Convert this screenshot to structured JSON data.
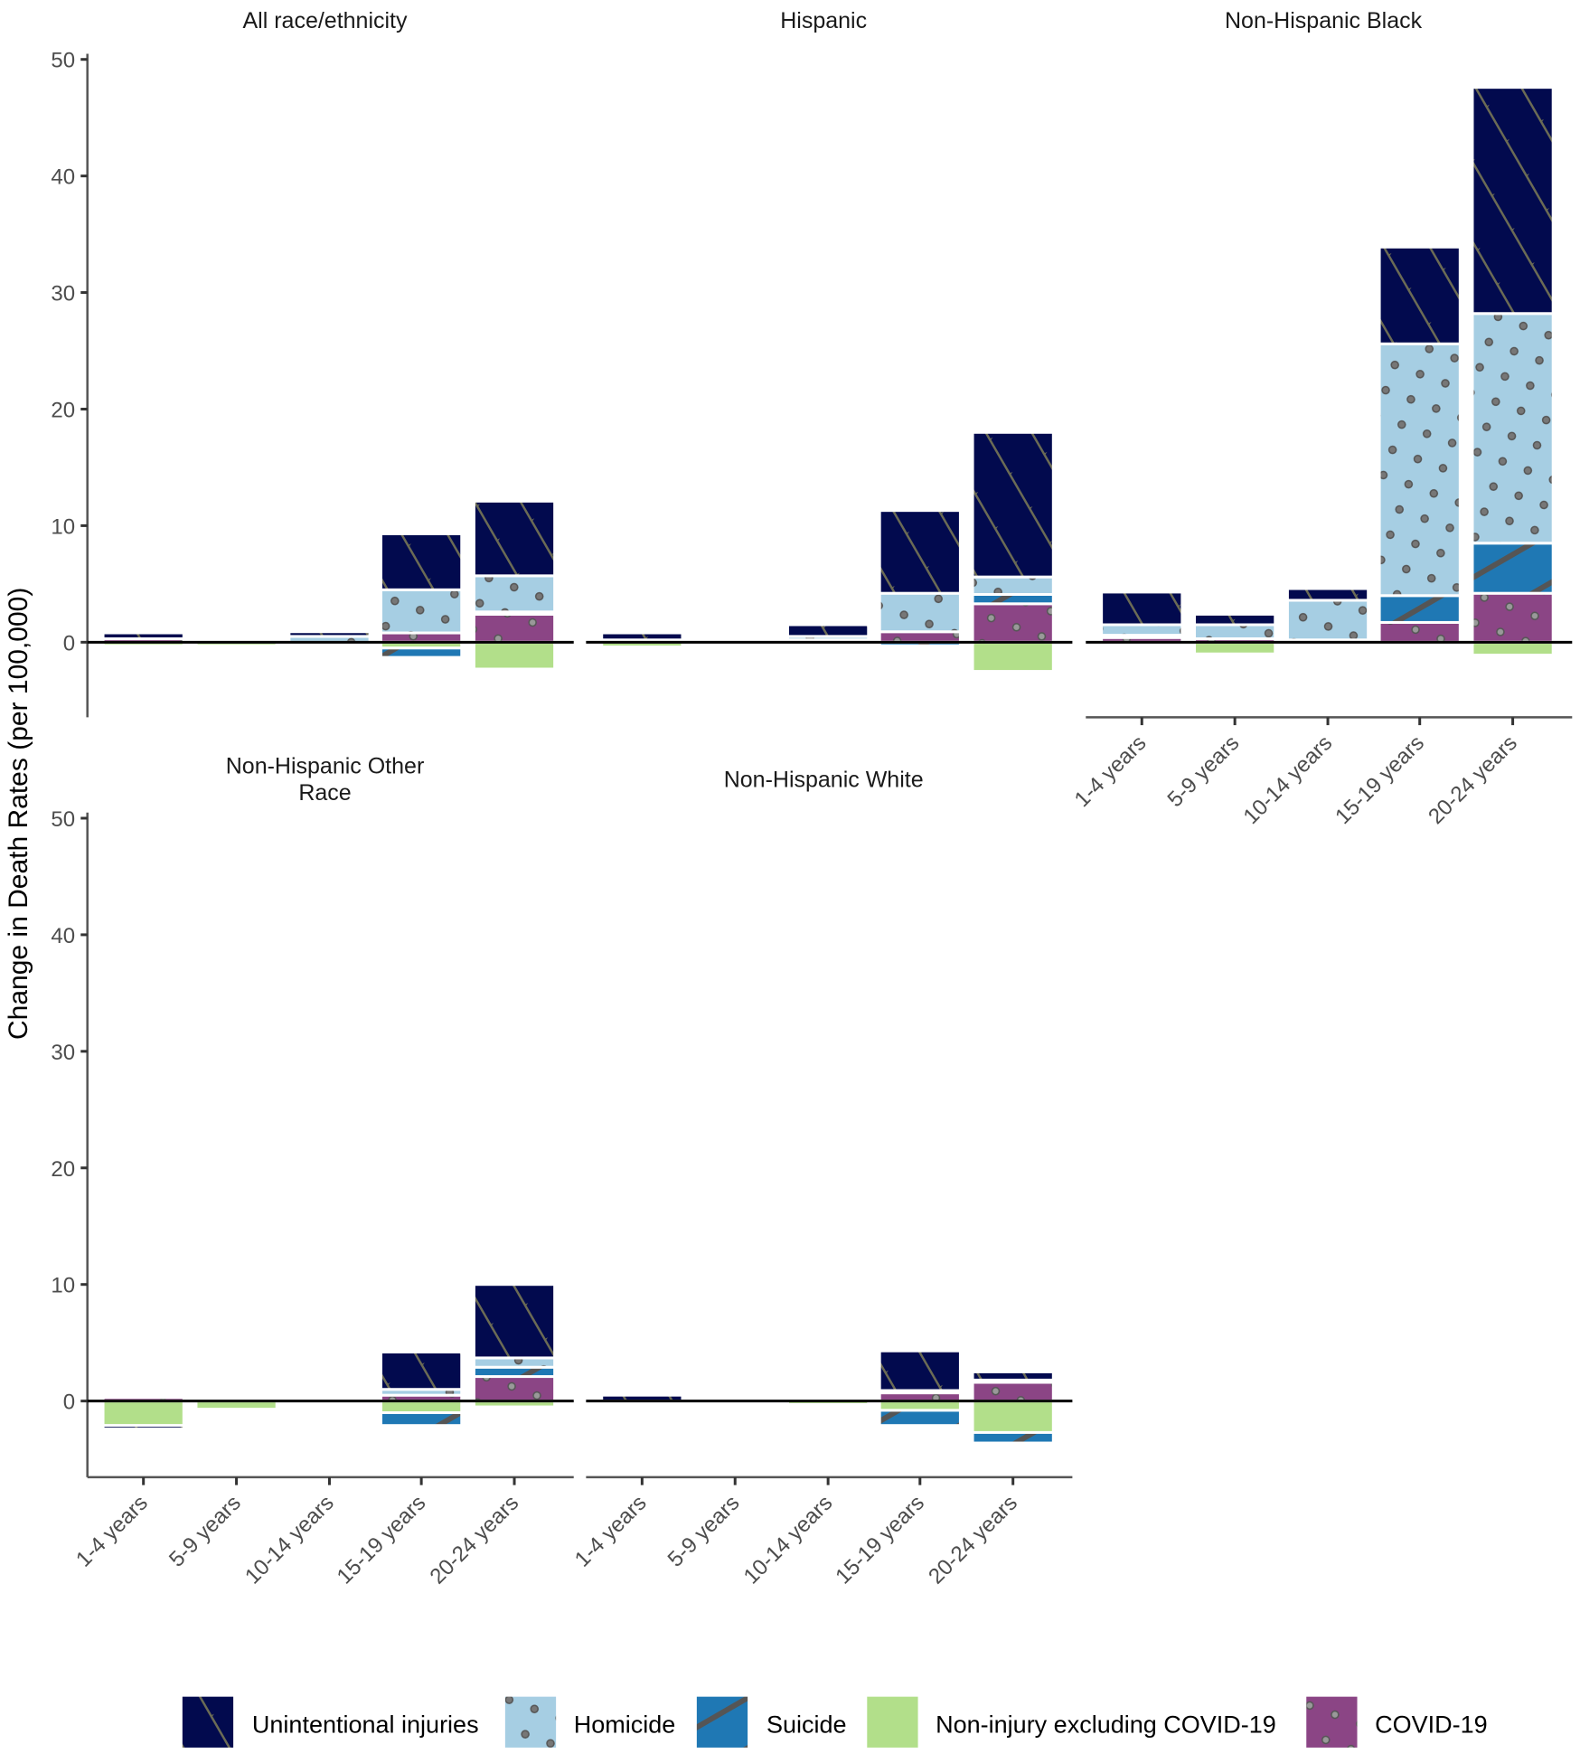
{
  "chart_data": {
    "type": "bar",
    "subtype": "stacked-diverging-faceted",
    "ylabel": "Change in Death Rates (per 100,000)",
    "xlabel": "",
    "ylim": [
      -6.5,
      50
    ],
    "yticks": [
      0,
      10,
      20,
      30,
      40,
      50
    ],
    "categories": [
      "1-4 years",
      "5-9 years",
      "10-14 years",
      "15-19 years",
      "20-24 years"
    ],
    "legend_position": "bottom",
    "legend": [
      {
        "key": "unintentional",
        "label": "Unintentional injuries",
        "color": "#020A4E",
        "pattern": "crosshatch"
      },
      {
        "key": "homicide",
        "label": "Homicide",
        "color": "#A6CEE3",
        "pattern": "dots"
      },
      {
        "key": "suicide",
        "label": "Suicide",
        "color": "#1F78B4",
        "pattern": "stripes"
      },
      {
        "key": "noninjury",
        "label": "Non-injury excluding COVID-19",
        "color": "#B2DF8A",
        "pattern": "none"
      },
      {
        "key": "covid",
        "label": "COVID-19",
        "color": "#8B4585",
        "pattern": "dots"
      }
    ],
    "stack_order": [
      "covid",
      "noninjury",
      "suicide",
      "homicide",
      "unintentional"
    ],
    "panels": [
      {
        "title": "All race/ethnicity",
        "series": {
          "covid": [
            0.3,
            0.0,
            0.0,
            0.8,
            2.4
          ],
          "noninjury": [
            -0.3,
            -0.3,
            0.0,
            -0.5,
            -2.3
          ],
          "suicide": [
            0.0,
            0.0,
            0.0,
            -0.8,
            0.2
          ],
          "homicide": [
            0.0,
            0.0,
            0.5,
            3.7,
            3.1
          ],
          "unintentional": [
            0.5,
            0.0,
            0.4,
            4.8,
            6.4
          ]
        }
      },
      {
        "title": "Hispanic",
        "series": {
          "covid": [
            0.2,
            0.0,
            0.2,
            0.9,
            3.3
          ],
          "noninjury": [
            -0.4,
            -0.2,
            0.0,
            0.0,
            -2.5
          ],
          "suicide": [
            0.0,
            0.0,
            0.0,
            -0.3,
            0.8
          ],
          "homicide": [
            0.0,
            0.0,
            0.3,
            3.3,
            1.5
          ],
          "unintentional": [
            0.6,
            0.0,
            1.0,
            7.1,
            12.4
          ]
        }
      },
      {
        "title": "Non-Hispanic Black",
        "series": {
          "covid": [
            0.4,
            0.3,
            0.2,
            1.7,
            4.2
          ],
          "noninjury": [
            0.2,
            -1.0,
            0.0,
            0.0,
            -1.1
          ],
          "suicide": [
            0.0,
            0.0,
            0.0,
            2.3,
            4.3
          ],
          "homicide": [
            0.9,
            1.2,
            3.4,
            21.6,
            19.7
          ],
          "unintentional": [
            2.8,
            0.9,
            1.0,
            8.3,
            19.4
          ]
        },
        "show_x_labels": true
      },
      {
        "title": "Non-Hispanic Other Race",
        "series": {
          "covid": [
            0.3,
            0.0,
            0.0,
            0.5,
            2.1
          ],
          "noninjury": [
            -2.1,
            -0.7,
            0.0,
            -1.0,
            -0.5
          ],
          "suicide": [
            0.0,
            0.0,
            0.0,
            -1.1,
            0.8
          ],
          "homicide": [
            0.0,
            0.0,
            0.0,
            0.5,
            0.8
          ],
          "unintentional": [
            -0.3,
            0.0,
            0.0,
            3.2,
            6.3
          ]
        },
        "show_x_labels": true
      },
      {
        "title": "Non-Hispanic White",
        "series": {
          "covid": [
            0.0,
            0.0,
            0.0,
            0.7,
            1.6
          ],
          "noninjury": [
            -0.1,
            0.0,
            -0.3,
            -0.8,
            -2.7
          ],
          "suicide": [
            0.0,
            0.0,
            0.0,
            -1.3,
            -0.9
          ],
          "homicide": [
            0.0,
            0.0,
            0.0,
            0.2,
            0.2
          ],
          "unintentional": [
            0.5,
            0.0,
            0.0,
            3.4,
            0.7
          ]
        },
        "show_x_labels": true
      }
    ]
  }
}
